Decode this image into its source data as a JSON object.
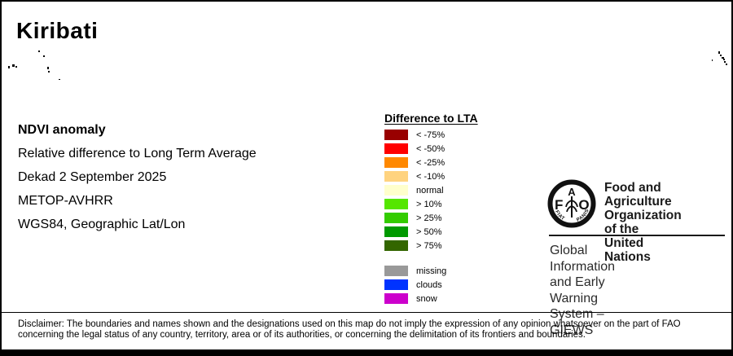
{
  "title": "Kiribati",
  "info": {
    "heading": "NDVI anomaly",
    "lines": [
      "Relative difference to Long Term Average",
      "Dekad 2 September 2025",
      "METOP-AVHRR",
      "WGS84, Geographic Lat/Lon"
    ]
  },
  "legend": {
    "title": "Difference to LTA",
    "classes": [
      {
        "color": "#990000",
        "label": "< -75%"
      },
      {
        "color": "#FF0000",
        "label": "< -50%"
      },
      {
        "color": "#FF8800",
        "label": "< -25%"
      },
      {
        "color": "#FFD37F",
        "label": "< -10%"
      },
      {
        "color": "#FFFFCC",
        "label": "normal"
      },
      {
        "color": "#55E600",
        "label": "> 10%"
      },
      {
        "color": "#33CC00",
        "label": "> 25%"
      },
      {
        "color": "#009900",
        "label": "> 50%"
      },
      {
        "color": "#336600",
        "label": "> 75%"
      }
    ],
    "extras": [
      {
        "color": "#999999",
        "label": "missing"
      },
      {
        "color": "#0033FF",
        "label": "clouds"
      },
      {
        "color": "#CC00CC",
        "label": "snow"
      }
    ]
  },
  "fao": {
    "org_lines": [
      "Food and Agriculture",
      "Organization of the",
      "United Nations"
    ],
    "giews_lines": [
      "Global Information and Early",
      "Warning System – GIEWS"
    ],
    "logo": {
      "letter_f": "F",
      "letter_a": "A",
      "letter_o": "O",
      "motto_left": "FIAT",
      "motto_right": "PANIS"
    }
  },
  "disclaimer": {
    "lines": [
      "Disclaimer: The boundaries and names shown and the designations used on this map do not imply the expression of any opinion whatsoever on the part of FAO",
      "concerning the legal status of any country, territory, area or of its authorities, or concerning the delimitation of its frontiers and boundaries."
    ]
  },
  "map": {
    "island_color": "#000000",
    "islands": [
      [
        45,
        60,
        2,
        2
      ],
      [
        51,
        66,
        2,
        2
      ],
      [
        8,
        79,
        2,
        3
      ],
      [
        13,
        77,
        3,
        3
      ],
      [
        17,
        79,
        2,
        2
      ],
      [
        56,
        80,
        2,
        3
      ],
      [
        57,
        85,
        2,
        2
      ],
      [
        70,
        95,
        2,
        1
      ],
      [
        872,
        71,
        1,
        2
      ],
      [
        880,
        61,
        2,
        3
      ],
      [
        882,
        65,
        2,
        2
      ],
      [
        884,
        68,
        3,
        2
      ],
      [
        886,
        70,
        2,
        2
      ],
      [
        887,
        73,
        2,
        2
      ],
      [
        889,
        76,
        2,
        2
      ]
    ]
  }
}
